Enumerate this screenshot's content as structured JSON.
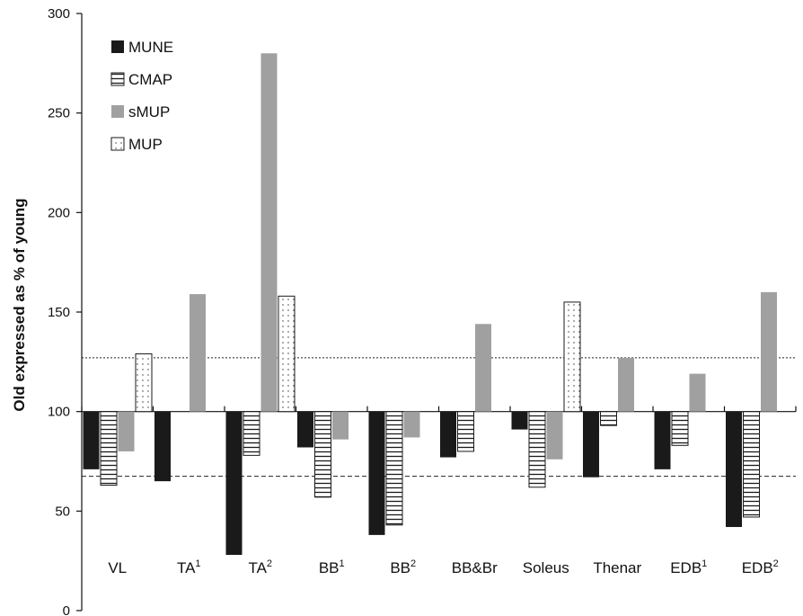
{
  "chart_data": {
    "type": "bar",
    "ylabel": "Old expressed as % of young",
    "xlabel": "",
    "ylim": [
      0,
      300
    ],
    "yticks": [
      0,
      50,
      100,
      150,
      200,
      250,
      300
    ],
    "baseline": 100,
    "reference_lines": [
      {
        "value": 127,
        "style": "dotted"
      },
      {
        "value": 67.5,
        "style": "dashed"
      }
    ],
    "categories": [
      {
        "base": "VL",
        "sup": ""
      },
      {
        "base": "TA",
        "sup": "1"
      },
      {
        "base": "TA",
        "sup": "2"
      },
      {
        "base": "BB",
        "sup": "1"
      },
      {
        "base": "BB",
        "sup": "2"
      },
      {
        "base": "BB&Br",
        "sup": ""
      },
      {
        "base": "Soleus",
        "sup": ""
      },
      {
        "base": "Thenar",
        "sup": ""
      },
      {
        "base": "EDB",
        "sup": "1"
      },
      {
        "base": "EDB",
        "sup": "2"
      }
    ],
    "series": [
      {
        "name": "MUNE",
        "pattern": "solid",
        "color": "#1a1a1a",
        "values": [
          71,
          65,
          28,
          82,
          38,
          77,
          91,
          67,
          71,
          42
        ]
      },
      {
        "name": "CMAP",
        "pattern": "horizontal-lines",
        "color": "#1a1a1a",
        "values": [
          63,
          null,
          78,
          57,
          43,
          80,
          62,
          93,
          83,
          47
        ]
      },
      {
        "name": "sMUP",
        "pattern": "solid",
        "color": "#a0a0a0",
        "values": [
          80,
          159,
          280,
          86,
          87,
          144,
          76,
          127,
          119,
          160
        ]
      },
      {
        "name": "MUP",
        "pattern": "dots",
        "color": "#1a1a1a",
        "values": [
          129,
          null,
          158,
          null,
          null,
          null,
          155,
          null,
          null,
          null
        ]
      }
    ],
    "legend": {
      "placement": "top-left"
    }
  }
}
